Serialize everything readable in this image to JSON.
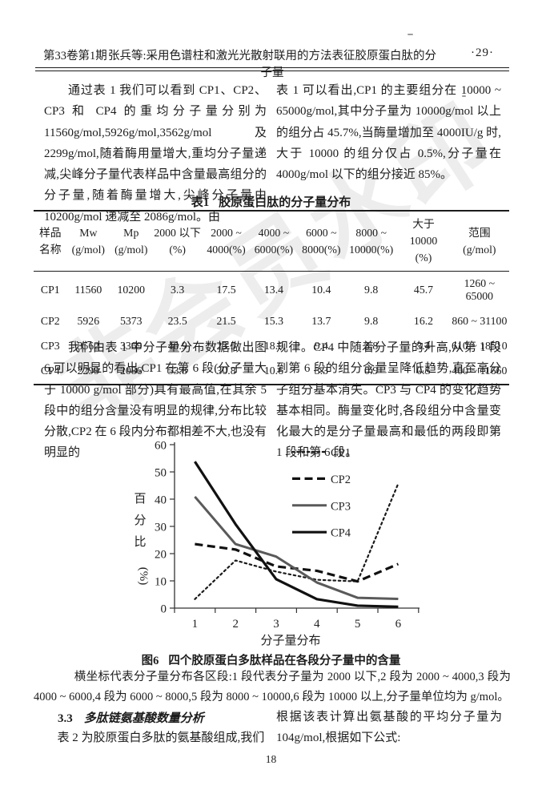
{
  "header": {
    "volume_issue": "第33卷第1期",
    "running_title": "张兵等:采用色谱柱和激光光散射联用的方法表征胶原蛋白肽的分子量",
    "page_marker": "·29·"
  },
  "watermark": "非会员水印",
  "paragraphs": {
    "left_1": "通过表 1 我们可以看到 CP1、CP2、CP3 和 CP4 的重均分子量分别为 11560g/mol,5926g/mol,3562g/mol 及 2299g/mol,随着酶用量增大,重均分子量递减,尖峰分子量代表样品中含量最高组分的分子量,随着酶量增大,尖峰分子量由 10200g/mol 递减至 2086g/mol。由",
    "right_1": "表 1 可以看出,CP1 的主要组分在 10000 ~ 65000g/mol,其中分子量为 10000g/mol 以上的组分占 45.7%,当酶量增加至 4000IU/g 时,大于 10000 的组分仅占 0.5%,分子量在 4000g/mol 以下的组分接近 85%。",
    "left_2": "我们由表 1 中分子量分布数据做出图 6,可以明显的看出,CP1 在第 6 段(分子量大于 10000 g/mol 部分)具有最高值,在其余 5 段中的组分含量没有明显的规律,分布比较分散,CP2 在 6 段内分布都相差不大,也没有明显的",
    "right_2": "规律。CP4 中随着分子量的升高,从第 1 段到第 6 段的组分含量呈降低趋势,直至高分子组分基本消失。CP3 与 CP4 的变化趋势基本相同。酶量变化时,各段组分中含量变化最大的是分子量最高和最低的两段即第 1 段和第 6 段。",
    "left_3": "表 2 为胶原蛋白多肽的氨基酸组成,我们",
    "right_3": "根据该表计算出氨基酸的平均分子量为 104g/mol,根据如下公式:"
  },
  "table": {
    "caption_label": "表1",
    "caption_text": "胶原蛋白肽的分子量分布",
    "columns": [
      [
        "样品",
        "名称"
      ],
      [
        "Mw",
        "(g/mol)"
      ],
      [
        "Mp",
        "(g/mol)"
      ],
      [
        "2000 以下",
        "(%)"
      ],
      [
        "2000 ~",
        "4000(%)"
      ],
      [
        "4000 ~",
        "6000(%)"
      ],
      [
        "6000 ~",
        "8000(%)"
      ],
      [
        "8000 ~",
        "10000(%)"
      ],
      [
        "大于 10000",
        "(%)"
      ],
      [
        "范围",
        "(g/mol)"
      ]
    ],
    "rows": [
      [
        "CP1",
        "11560",
        "10200",
        "3.3",
        "17.5",
        "13.4",
        "10.4",
        "9.8",
        "45.7",
        "1260 ~ 65000"
      ],
      [
        "CP2",
        "5926",
        "5373",
        "23.5",
        "21.5",
        "15.3",
        "13.7",
        "9.8",
        "16.2",
        "860 ~ 31100"
      ],
      [
        "CP3",
        "3562",
        "3369",
        "40.9",
        "23.5",
        "18.9",
        "9.4",
        "3.8",
        "3.4",
        "610 ~ 18510"
      ],
      [
        "CP4",
        "2299",
        "2086",
        "53.8",
        "30.8",
        "10.6",
        "3.3",
        "0.9",
        "0.5",
        "400 ~ 11660"
      ]
    ]
  },
  "chart_data": {
    "type": "line",
    "categories": [
      "1",
      "2",
      "3",
      "4",
      "5",
      "6"
    ],
    "series": [
      {
        "name": "CP1",
        "values": [
          3.3,
          17.5,
          13.4,
          10.4,
          9.8,
          45.7
        ],
        "style": "dotted",
        "color": "#1a1a1a",
        "width": 2.2
      },
      {
        "name": "CP2",
        "values": [
          23.5,
          21.5,
          15.3,
          13.7,
          9.8,
          16.2
        ],
        "style": "dashed",
        "color": "#111111",
        "width": 3.2
      },
      {
        "name": "CP3",
        "values": [
          40.9,
          23.5,
          18.9,
          9.4,
          3.8,
          3.4
        ],
        "style": "solid",
        "color": "#5a5a5a",
        "width": 3
      },
      {
        "name": "CP4",
        "values": [
          53.8,
          30.8,
          10.6,
          3.3,
          0.9,
          0.5
        ],
        "style": "solid",
        "color": "#111111",
        "width": 3.2
      }
    ],
    "title": "",
    "xlabel": "分子量分布",
    "ylabel_chars": [
      "百",
      "分",
      "比"
    ],
    "ylabel_unit": "(%)",
    "ylim": [
      0,
      60
    ],
    "ytick_step": 10,
    "grid": false,
    "legend_position": "top-right-inside"
  },
  "figure": {
    "caption_label": "图6",
    "caption_text": "四个胶原蛋白多肽样品在各段分子量中的含量",
    "note": "横坐标代表分子量分布各区段:1 段代表分子量为 2000 以下,2 段为 2000 ~ 4000,3 段为 4000 ~ 6000,4 段为 6000 ~ 8000,5 段为 8000 ~ 10000,6 段为 10000 以上,分子量单位均为 g/mol。"
  },
  "section": {
    "number": "3.3",
    "title": "多肽链氨基酸数量分析"
  },
  "footer": {
    "page_number": "18"
  }
}
